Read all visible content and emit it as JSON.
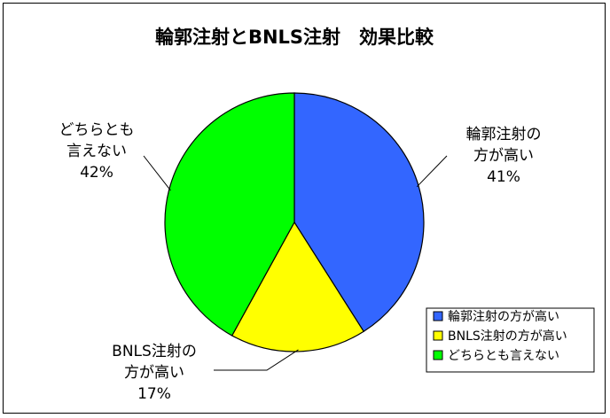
{
  "chart_data": {
    "type": "pie",
    "title": "輪郭注射とBNLS注射　効果比較",
    "categories": [
      "輪郭注射の方が高い",
      "BNLS注射の方が高い",
      "どちらとも言えない"
    ],
    "values": [
      41,
      17,
      42
    ],
    "colors": [
      "#3366ff",
      "#ffff00",
      "#00ff00"
    ],
    "data_labels": [
      {
        "lines": [
          "輪郭注射の",
          "方が高い"
        ],
        "percent": "41%"
      },
      {
        "lines": [
          "BNLS注射の",
          "方が高い"
        ],
        "percent": "17%"
      },
      {
        "lines": [
          "どちらとも",
          "言えない"
        ],
        "percent": "42%"
      }
    ],
    "legend": {
      "position": "bottom-right",
      "entries": [
        "輪郭注射の方が高い",
        "BNLS注射の方が高い",
        "どちらとも言えない"
      ]
    }
  }
}
